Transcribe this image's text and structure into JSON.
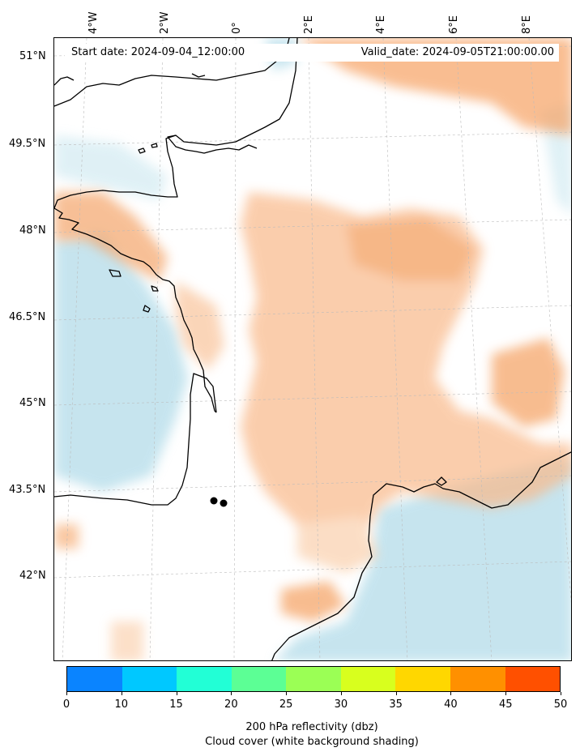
{
  "header": {
    "start_date": "Start date: 2024-09-04_12:00:00",
    "valid_date": "Valid_date: 2024-09-05T21:00:00.00"
  },
  "axes": {
    "latitude_labels": [
      "51°N",
      "49.5°N",
      "48°N",
      "46.5°N",
      "45°N",
      "43.5°N",
      "42°N"
    ],
    "longitude_labels": [
      "4°W",
      "2°W",
      "0°",
      "2°E",
      "4°E",
      "6°E",
      "8°E"
    ]
  },
  "colorbar": {
    "ticks": [
      "0",
      "10",
      "15",
      "20",
      "25",
      "30",
      "35",
      "40",
      "45",
      "50"
    ],
    "colors": [
      "#0a84ff",
      "#00c8ff",
      "#22ffd6",
      "#5cff95",
      "#9bff55",
      "#d8ff1e",
      "#ffd700",
      "#ff9000",
      "#ff5000"
    ],
    "label_line1": "200 hPa reflectivity (dbz)",
    "label_line2": "Cloud cover (white background shading)"
  },
  "map": {
    "cloud_colors": {
      "high": "#f7a264",
      "low": "#a8d7e6"
    },
    "coastline_color": "#000000",
    "grid_color": "#bbbbbb"
  }
}
